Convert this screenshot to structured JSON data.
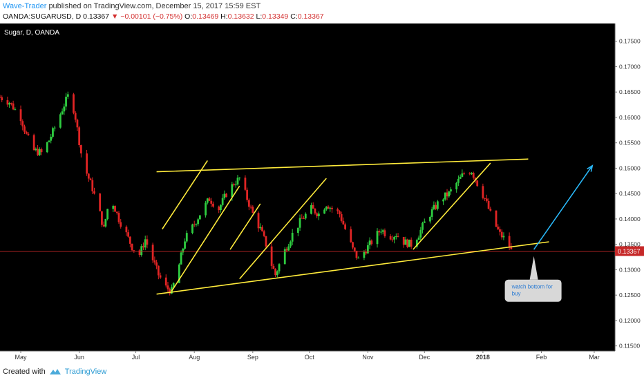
{
  "header": {
    "author": "Wave-Trader",
    "published_text": "published on TradingView.com, December 15, 2017 15:59 EST",
    "symbol": "OANDA:SUGARUSD, D",
    "last": "0.13367",
    "change": "−0.00101 (−0.75%)",
    "o_label": "O:",
    "o_value": "0.13469",
    "h_label": "H:",
    "h_value": "0.13632",
    "l_label": "L:",
    "l_value": "0.13349",
    "c_label": "C:",
    "c_value": "0.13367"
  },
  "footer": {
    "created_with": "Created with",
    "brand": "TradingView"
  },
  "colors": {
    "background": "#000000",
    "up": "#2ecc40",
    "down": "#e02424",
    "trendline": "#ffeb3b",
    "arrow": "#29b6f6",
    "price_line": "#c62828",
    "axis_text": "#333333"
  },
  "chart_data": {
    "type": "candlestick",
    "title": "Sugar, D, OANDA",
    "x_ticks": [
      "May",
      "Jun",
      "Jul",
      "Aug",
      "Sep",
      "Oct",
      "Nov",
      "Dec",
      "2018",
      "Feb",
      "Mar"
    ],
    "x_tick_dates": [
      "2017-05-01",
      "2017-06-01",
      "2017-07-01",
      "2017-08-01",
      "2017-09-01",
      "2017-10-01",
      "2017-11-01",
      "2017-12-01",
      "2018-01-01",
      "2018-02-01",
      "2018-03-01"
    ],
    "y_ticks": [
      "0.17500",
      "0.17000",
      "0.16500",
      "0.16000",
      "0.15500",
      "0.15000",
      "0.14500",
      "0.14000",
      "0.13500",
      "0.13000",
      "0.12500",
      "0.12000",
      "0.11500"
    ],
    "ylim": [
      0.114,
      0.1785
    ],
    "xlim": [
      "2017-04-20",
      "2018-03-12"
    ],
    "last_price": 0.13367,
    "last_price_label": "0.13367",
    "price_path": [
      [
        "2017-04-20",
        0.164
      ],
      [
        "2017-04-25",
        0.163
      ],
      [
        "2017-05-01",
        0.16
      ],
      [
        "2017-05-04",
        0.1565
      ],
      [
        "2017-05-08",
        0.1535
      ],
      [
        "2017-05-12",
        0.153
      ],
      [
        "2017-05-16",
        0.1555
      ],
      [
        "2017-05-19",
        0.158
      ],
      [
        "2017-05-24",
        0.1625
      ],
      [
        "2017-05-27",
        0.165
      ],
      [
        "2017-05-30",
        0.16
      ],
      [
        "2017-06-02",
        0.153
      ],
      [
        "2017-06-05",
        0.149
      ],
      [
        "2017-06-08",
        0.146
      ],
      [
        "2017-06-12",
        0.141
      ],
      [
        "2017-06-14",
        0.138
      ],
      [
        "2017-06-16",
        0.142
      ],
      [
        "2017-06-19",
        0.143
      ],
      [
        "2017-06-22",
        0.14
      ],
      [
        "2017-06-26",
        0.137
      ],
      [
        "2017-06-29",
        0.1345
      ],
      [
        "2017-07-03",
        0.133
      ],
      [
        "2017-07-06",
        0.136
      ],
      [
        "2017-07-10",
        0.132
      ],
      [
        "2017-07-13",
        0.129
      ],
      [
        "2017-07-17",
        0.1265
      ],
      [
        "2017-07-20",
        0.1258
      ],
      [
        "2017-07-24",
        0.131
      ],
      [
        "2017-07-27",
        0.136
      ],
      [
        "2017-08-01",
        0.139
      ],
      [
        "2017-08-04",
        0.141
      ],
      [
        "2017-08-09",
        0.144
      ],
      [
        "2017-08-14",
        0.142
      ],
      [
        "2017-08-18",
        0.145
      ],
      [
        "2017-08-22",
        0.147
      ],
      [
        "2017-08-25",
        0.148
      ],
      [
        "2017-08-29",
        0.144
      ],
      [
        "2017-09-01",
        0.141
      ],
      [
        "2017-09-05",
        0.138
      ],
      [
        "2017-09-08",
        0.135
      ],
      [
        "2017-09-11",
        0.131
      ],
      [
        "2017-09-13",
        0.129
      ],
      [
        "2017-09-17",
        0.133
      ],
      [
        "2017-09-22",
        0.137
      ],
      [
        "2017-09-27",
        0.14
      ],
      [
        "2017-10-02",
        0.142
      ],
      [
        "2017-10-06",
        0.141
      ],
      [
        "2017-10-10",
        0.143
      ],
      [
        "2017-10-13",
        0.142
      ],
      [
        "2017-10-17",
        0.141
      ],
      [
        "2017-10-20",
        0.138
      ],
      [
        "2017-10-24",
        0.134
      ],
      [
        "2017-10-27",
        0.132
      ],
      [
        "2017-10-31",
        0.134
      ],
      [
        "2017-11-04",
        0.136
      ],
      [
        "2017-11-08",
        0.138
      ],
      [
        "2017-11-12",
        0.1365
      ],
      [
        "2017-11-16",
        0.137
      ],
      [
        "2017-11-20",
        0.1355
      ],
      [
        "2017-11-24",
        0.135
      ],
      [
        "2017-11-28",
        0.137
      ],
      [
        "2017-12-02",
        0.14
      ],
      [
        "2017-12-06",
        0.142
      ],
      [
        "2017-12-10",
        0.144
      ],
      [
        "2017-12-14",
        0.145
      ],
      [
        "2017-12-18",
        0.147
      ],
      [
        "2017-12-22",
        0.149
      ],
      [
        "2017-12-26",
        0.1495
      ],
      [
        "2017-12-29",
        0.147
      ],
      [
        "2018-01-02",
        0.144
      ],
      [
        "2018-01-06",
        0.14
      ],
      [
        "2018-01-10",
        0.137
      ],
      [
        "2018-01-14",
        0.1355
      ],
      [
        "2018-01-16",
        0.1337
      ]
    ],
    "annotations": {
      "trend_lines": [
        {
          "name": "upper-channel-line",
          "from": [
            "2017-07-12",
            0.1493
          ],
          "to": [
            "2018-01-25",
            0.1518
          ]
        },
        {
          "name": "lower-channel-line",
          "from": [
            "2017-07-12",
            0.1252
          ],
          "to": [
            "2018-02-05",
            0.1355
          ]
        },
        {
          "name": "channel-1-upper",
          "from": [
            "2017-07-15",
            0.138
          ],
          "to": [
            "2017-08-08",
            0.1515
          ]
        },
        {
          "name": "channel-1-lower",
          "from": [
            "2017-07-20",
            0.1258
          ],
          "to": [
            "2017-08-25",
            0.1465
          ]
        },
        {
          "name": "channel-2-upper",
          "from": [
            "2017-08-20",
            0.134
          ],
          "to": [
            "2017-09-05",
            0.143
          ]
        },
        {
          "name": "channel-2-lower",
          "from": [
            "2017-08-25",
            0.1282
          ],
          "to": [
            "2017-10-10",
            0.148
          ]
        },
        {
          "name": "channel-3-upper",
          "from": [
            "2017-11-25",
            0.134
          ],
          "to": [
            "2018-01-05",
            0.151
          ]
        }
      ],
      "arrow": {
        "from": [
          "2018-01-28",
          0.134
        ],
        "to": [
          "2018-02-28",
          0.1505
        ]
      },
      "callout": {
        "text": "watch bottom for buy",
        "anchor": [
          "2018-01-28",
          0.1335
        ]
      }
    }
  }
}
